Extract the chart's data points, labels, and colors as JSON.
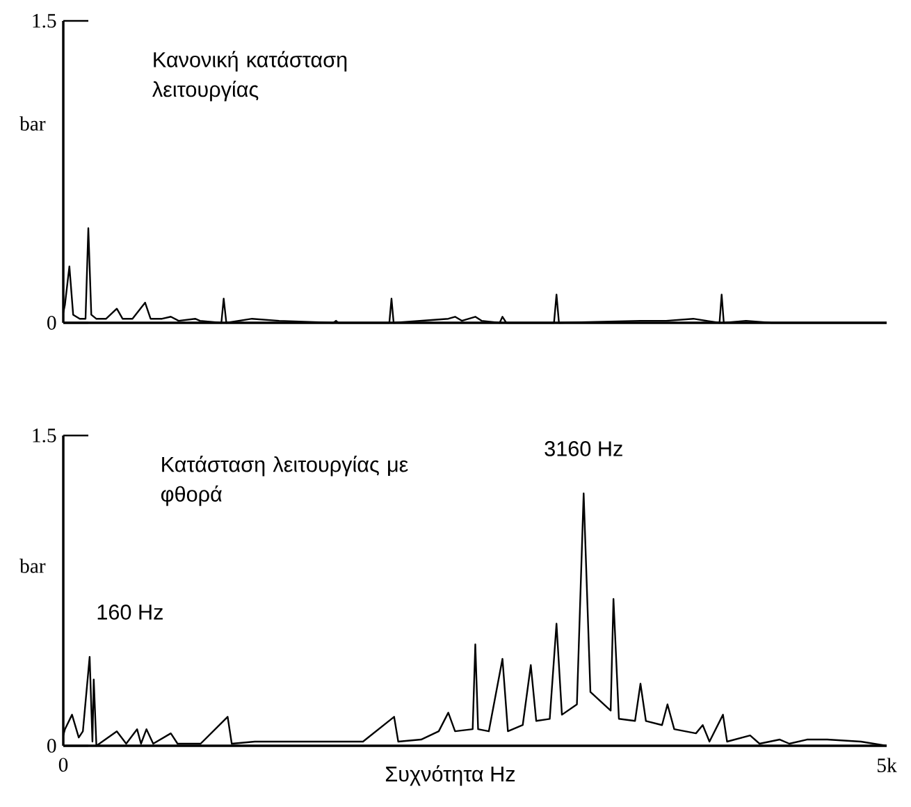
{
  "chart_data": [
    {
      "type": "line",
      "title": "Κανονική κατάσταση λειτουργίας",
      "ylabel": "bar",
      "color": "#000000",
      "xlim": [
        0,
        5000
      ],
      "ylim": [
        0,
        1.5
      ],
      "yticks": [
        0,
        1.5
      ],
      "tick_labels": "y",
      "x": [
        0,
        10,
        37,
        60,
        100,
        135,
        152,
        170,
        200,
        260,
        325,
        360,
        420,
        497,
        530,
        600,
        653,
        700,
        801,
        830,
        960,
        974,
        990,
        1146,
        1311,
        1640,
        1656,
        1670,
        1980,
        1993,
        2006,
        2338,
        2379,
        2420,
        2502,
        2540,
        2650,
        2667,
        2690,
        2980,
        2995,
        3010,
        3505,
        3661,
        3826,
        3985,
        3998,
        4011,
        4146,
        4300,
        5000
      ],
      "values": [
        0.05,
        0.09,
        0.28,
        0.04,
        0.02,
        0.02,
        0.47,
        0.04,
        0.02,
        0.02,
        0.07,
        0.02,
        0.02,
        0.1,
        0.02,
        0.02,
        0.03,
        0.01,
        0.02,
        0.01,
        0,
        0.12,
        0,
        0.02,
        0.01,
        0,
        0.01,
        0,
        0,
        0.12,
        0,
        0.02,
        0.03,
        0.01,
        0.03,
        0.01,
        0,
        0.03,
        0,
        0,
        0.14,
        0,
        0.01,
        0.01,
        0.02,
        0,
        0.14,
        0,
        0.01,
        0,
        0
      ]
    },
    {
      "type": "line",
      "title": "Κατάσταση λειτουργίας με φθορά",
      "xlabel": "Συχνότητα Hz",
      "ylabel": "bar",
      "color": "#000000",
      "xlim": [
        0,
        5000
      ],
      "ylim": [
        0,
        1.5
      ],
      "yticks": [
        0,
        1.5
      ],
      "xticks": [
        0,
        {
          "value": 5000,
          "label": "5k"
        }
      ],
      "annotations": [
        {
          "text": "160 Hz",
          "x": 160,
          "y": 0.43
        },
        {
          "text": "3160 Hz",
          "x": 3160,
          "y": 1.22
        }
      ],
      "x": [
        0,
        10,
        53,
        94,
        119,
        160,
        177,
        185,
        201,
        325,
        382,
        448,
        472,
        505,
        546,
        653,
        694,
        834,
        998,
        1023,
        1163,
        1327,
        1491,
        1656,
        1820,
        2009,
        2034,
        2173,
        2280,
        2338,
        2379,
        2486,
        2502,
        2519,
        2584,
        2667,
        2700,
        2790,
        2839,
        2872,
        2954,
        2995,
        3028,
        3119,
        3160,
        3201,
        3324,
        3341,
        3374,
        3472,
        3505,
        3538,
        3636,
        3669,
        3710,
        3842,
        3883,
        3924,
        4006,
        4031,
        4171,
        4228,
        4351,
        4409,
        4516,
        4639,
        4844,
        5000
      ],
      "values": [
        0.05,
        0.08,
        0.15,
        0.04,
        0.07,
        0.43,
        0.02,
        0.32,
        0,
        0.07,
        0.01,
        0.08,
        0.01,
        0.08,
        0.01,
        0.06,
        0.01,
        0.01,
        0.14,
        0.01,
        0.02,
        0.02,
        0.02,
        0.02,
        0.02,
        0.14,
        0.02,
        0.03,
        0.07,
        0.16,
        0.07,
        0.08,
        0.49,
        0.08,
        0.07,
        0.42,
        0.07,
        0.1,
        0.39,
        0.12,
        0.13,
        0.59,
        0.15,
        0.2,
        1.22,
        0.26,
        0.17,
        0.71,
        0.13,
        0.12,
        0.3,
        0.12,
        0.1,
        0.2,
        0.08,
        0.06,
        0.1,
        0.02,
        0.15,
        0.02,
        0.05,
        0.01,
        0.03,
        0.01,
        0.03,
        0.03,
        0.02,
        0
      ]
    }
  ]
}
